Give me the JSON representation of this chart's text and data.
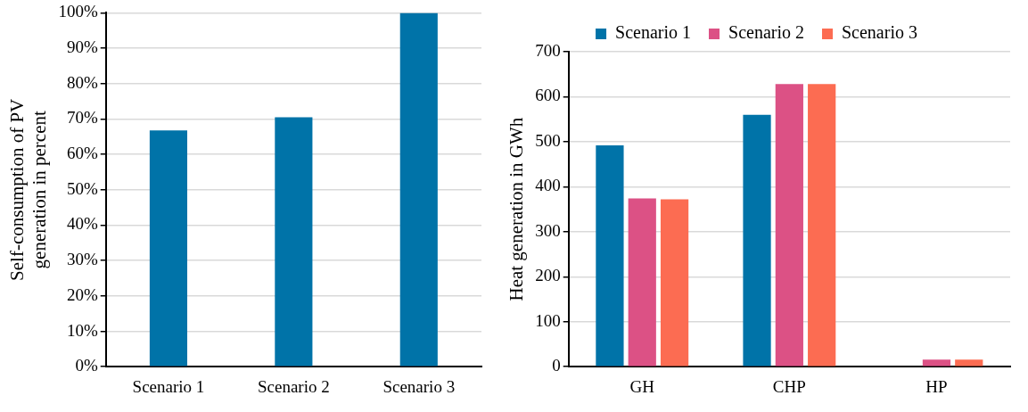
{
  "chart_data": [
    {
      "type": "bar",
      "ylabel": "Self-consumption of PV generation in percent",
      "categories": [
        "Scenario 1",
        "Scenario 2",
        "Scenario 3"
      ],
      "values": [
        66.8,
        70.5,
        100
      ],
      "color": "#0073a8",
      "ylim": [
        0,
        100
      ],
      "yticks": [
        {
          "value": 0,
          "label": "0%"
        },
        {
          "value": 10,
          "label": "10%"
        },
        {
          "value": 20,
          "label": "20%"
        },
        {
          "value": 30,
          "label": "30%"
        },
        {
          "value": 40,
          "label": "40%"
        },
        {
          "value": 50,
          "label": "50%"
        },
        {
          "value": 60,
          "label": "60%"
        },
        {
          "value": 70,
          "label": "70%"
        },
        {
          "value": 80,
          "label": "80%"
        },
        {
          "value": 90,
          "label": "90%"
        },
        {
          "value": 100,
          "label": "100%"
        }
      ],
      "grid": "y"
    },
    {
      "type": "bar",
      "ylabel": "Heat generation in GWh",
      "categories": [
        "GH",
        "CHP",
        "HP"
      ],
      "series": [
        {
          "name": "Scenario 1",
          "color": "#0073a8",
          "values": [
            492,
            560,
            0
          ]
        },
        {
          "name": "Scenario 2",
          "color": "#dc5185",
          "values": [
            374,
            628,
            16
          ]
        },
        {
          "name": "Scenario 3",
          "color": "#fc6c52",
          "values": [
            372,
            628,
            16
          ]
        }
      ],
      "ylim": [
        0,
        700
      ],
      "yticks": [
        0,
        100,
        200,
        300,
        400,
        500,
        600,
        700
      ],
      "grid": "y",
      "legend": "top"
    }
  ]
}
